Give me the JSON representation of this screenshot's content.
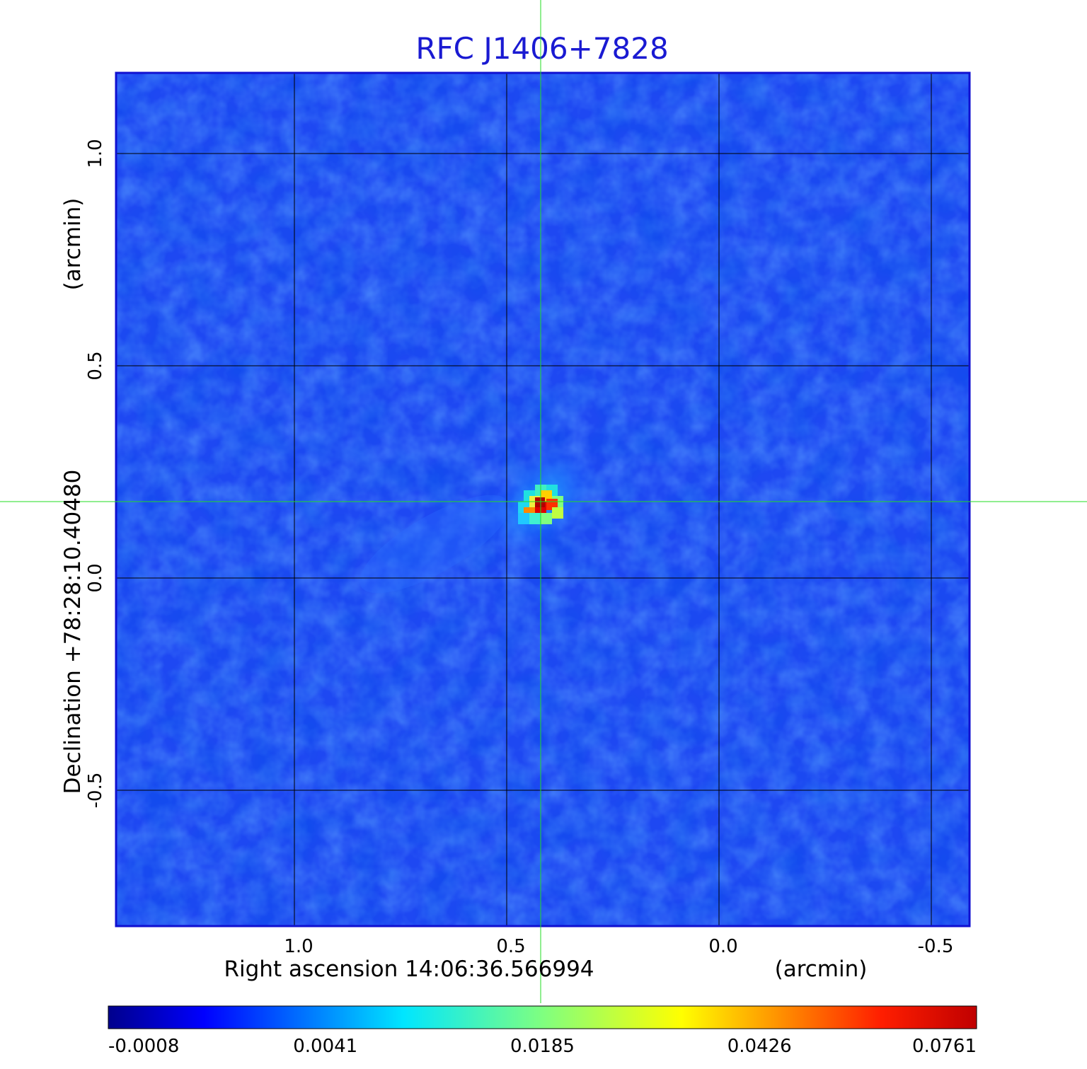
{
  "chart_data": {
    "type": "heatmap",
    "title": "RFC J1406+7828",
    "xlabel": "Right ascension  14:06:36.566994",
    "xunit": "(arcmin)",
    "ylabel": "Declination  +78:28:10.40480",
    "yunit": "(arcmin)",
    "x_ticks": [
      1.0,
      0.5,
      0.0,
      -0.5
    ],
    "x_tick_labels": [
      "1.0",
      "0.5",
      "0.0",
      "-0.5"
    ],
    "y_ticks": [
      1.0,
      0.5,
      0.0,
      -0.5
    ],
    "y_tick_labels": [
      "1.0",
      "0.5",
      "0.0",
      "-0.5"
    ],
    "xlim": [
      1.42,
      -0.59
    ],
    "ylim": [
      -0.82,
      1.19
    ],
    "grid": true,
    "crosshair": {
      "x": 0.42,
      "y": 0.18,
      "color": "#22dd22"
    },
    "peak": {
      "x": 0.42,
      "y": 0.18,
      "value": 0.0761
    },
    "colorbar": {
      "orientation": "horizontal",
      "colormap": "jet",
      "tick_labels": [
        "-0.0008",
        "0.0041",
        "0.0185",
        "0.0426",
        "0.0761"
      ],
      "range": [
        -0.0008,
        0.0761
      ]
    },
    "colors": {
      "title": "#1a1ad2",
      "frame": "#1010d0",
      "background_field": "#1e46f0",
      "grid": "#000000"
    }
  }
}
